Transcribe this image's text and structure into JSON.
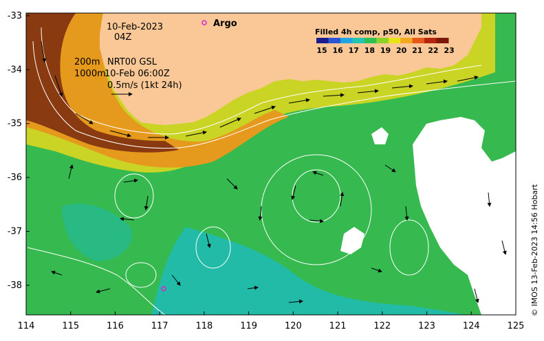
{
  "map": {
    "lon_ticks": [
      "114",
      "115",
      "116",
      "117",
      "118",
      "119",
      "120",
      "121",
      "122",
      "123",
      "124",
      "125"
    ],
    "lat_ticks": [
      "-33",
      "-34",
      "-35",
      "-36",
      "-37",
      "-38"
    ],
    "lon_range": [
      114,
      125
    ],
    "lat_range": [
      -38.55,
      -32.95
    ],
    "annotations": {
      "date": "10-Feb-2023",
      "time": "04Z",
      "contours_1": "200m",
      "contours_2": "1000m",
      "currents_1": "NRT00 GSL",
      "currents_2": "10-Feb 06:00Z",
      "scale": "0.5m/s (1kt 24h)"
    },
    "legend": {
      "argo_label": "Argo",
      "title": "Filled 4h comp, p50, All Sats",
      "ticks": [
        "15",
        "16",
        "17",
        "18",
        "19",
        "20",
        "21",
        "22",
        "23"
      ],
      "colors": [
        "#1c1c8f",
        "#2a55d6",
        "#1fa5e0",
        "#23c4b2",
        "#2fbf55",
        "#8ad12a",
        "#e8e418",
        "#f3a81f",
        "#e4581c",
        "#b3260d",
        "#7b1a0a"
      ]
    },
    "colors": {
      "land": "#f9c896",
      "cold": "#21bba8",
      "mid": "#36b94e",
      "warm": "#c9d424",
      "hot": "#e59a1e",
      "hottest": "#8a3a10",
      "cloud": "#ffffff",
      "argo": "#e020d0"
    },
    "credit": "© IMOS 13-Feb-2023 14:56 Hobart"
  }
}
